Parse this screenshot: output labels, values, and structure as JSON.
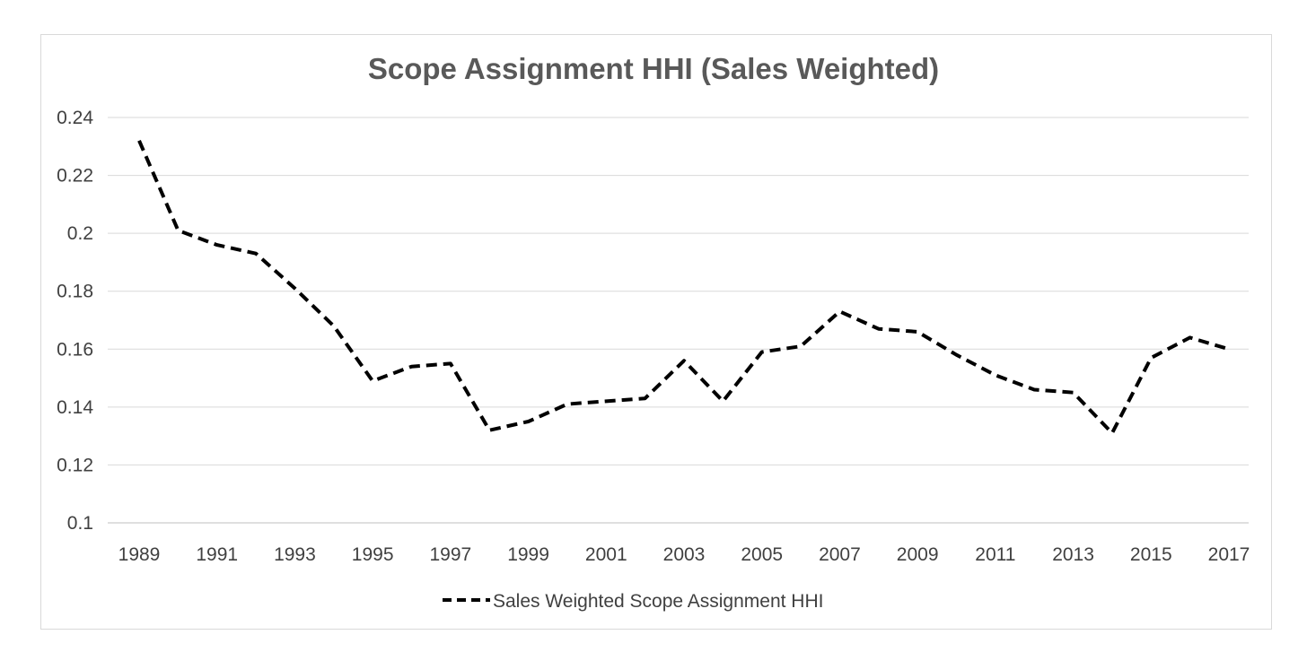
{
  "chart_data": {
    "type": "line",
    "title": "Scope Assignment HHI (Sales Weighted)",
    "xlabel": "",
    "ylabel": "",
    "x": [
      1989,
      1990,
      1991,
      1992,
      1993,
      1994,
      1995,
      1996,
      1997,
      1998,
      1999,
      2000,
      2001,
      2002,
      2003,
      2004,
      2005,
      2006,
      2007,
      2008,
      2009,
      2010,
      2011,
      2012,
      2013,
      2014,
      2015,
      2016,
      2017
    ],
    "x_tick_labels": [
      "1989",
      "1991",
      "1993",
      "1995",
      "1997",
      "1999",
      "2001",
      "2003",
      "2005",
      "2007",
      "2009",
      "2011",
      "2013",
      "2015",
      "2017"
    ],
    "y_tick_labels": [
      "0.24",
      "0.22",
      "0.2",
      "0.18",
      "0.16",
      "0.14",
      "0.12",
      "0.1"
    ],
    "y_ticks": [
      0.24,
      0.22,
      0.2,
      0.18,
      0.16,
      0.14,
      0.12,
      0.1
    ],
    "ylim": [
      0.1,
      0.24
    ],
    "grid": true,
    "legend_position": "bottom",
    "series": [
      {
        "name": "Sales Weighted Scope Assignment HHI",
        "style": "dashed",
        "color": "#000000",
        "values": [
          0.232,
          0.201,
          0.196,
          0.193,
          0.181,
          0.168,
          0.149,
          0.154,
          0.155,
          0.132,
          0.135,
          0.141,
          0.142,
          0.143,
          0.156,
          0.142,
          0.159,
          0.161,
          0.173,
          0.167,
          0.166,
          0.158,
          0.151,
          0.146,
          0.145,
          0.131,
          0.157,
          0.164,
          0.16
        ]
      }
    ]
  }
}
